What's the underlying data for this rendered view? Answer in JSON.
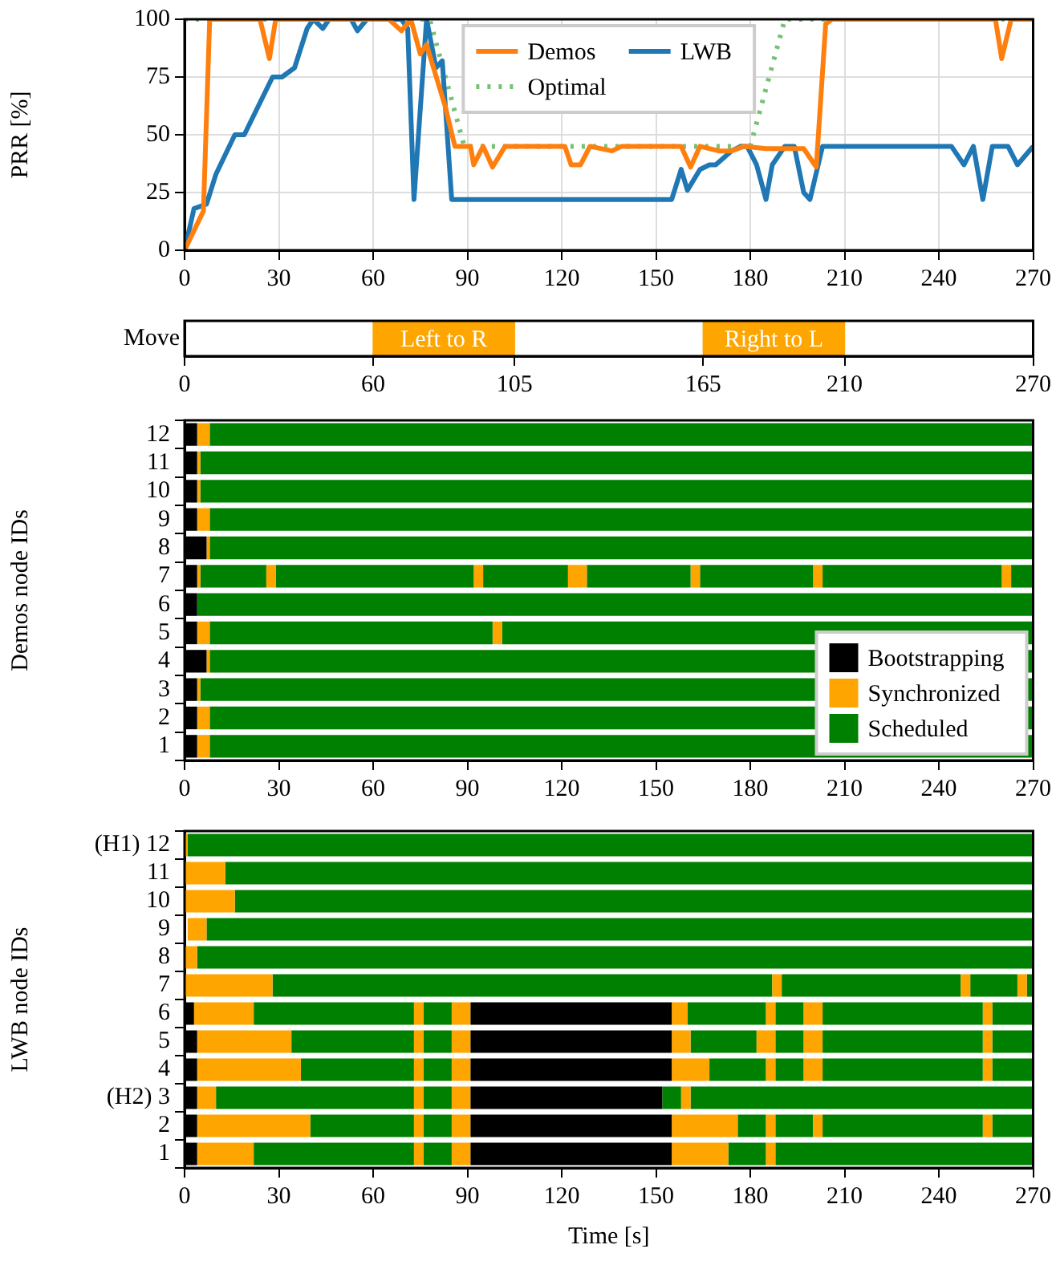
{
  "chart_data": [
    {
      "type": "line",
      "ylabel": "PRR [%]",
      "xlim": [
        0,
        270
      ],
      "xticks": [
        0,
        30,
        60,
        90,
        120,
        150,
        180,
        210,
        240,
        270
      ],
      "ylim": [
        0,
        100
      ],
      "yticks": [
        0,
        25,
        50,
        75,
        100
      ],
      "grid": true,
      "legend": "top",
      "marker": "none",
      "series": [
        {
          "name": "Demos",
          "color": "#ff7f0e",
          "line_style": "solid",
          "x": [
            0,
            6,
            8,
            24,
            27,
            29,
            65,
            69,
            72,
            75,
            77,
            81,
            83,
            86,
            91,
            92,
            95,
            98,
            102,
            121,
            123,
            126,
            129,
            136,
            139,
            158,
            161,
            164,
            170,
            174,
            178,
            185,
            190,
            197,
            201,
            204,
            206,
            258,
            260,
            263,
            270
          ],
          "values": [
            0,
            17,
            100,
            100,
            83,
            100,
            100,
            95,
            100,
            85,
            89,
            71,
            62,
            45,
            45,
            37,
            45,
            36,
            45,
            45,
            37,
            37,
            45,
            43,
            45,
            45,
            36,
            45,
            43,
            43,
            45,
            44,
            44,
            44,
            36,
            98,
            100,
            100,
            83,
            100,
            100
          ]
        },
        {
          "name": "LWB",
          "color": "#1f77b4",
          "line_style": "solid",
          "x": [
            0,
            3,
            7,
            10,
            16,
            19,
            28,
            31,
            35,
            39,
            41,
            44,
            46,
            53,
            55,
            58,
            69,
            71,
            73,
            77,
            80,
            82,
            85,
            155,
            158,
            160,
            164,
            167,
            169,
            174,
            177,
            179,
            182,
            185,
            187,
            191,
            194,
            197,
            199,
            203,
            244,
            248,
            251,
            254,
            257,
            262,
            265,
            270
          ],
          "values": [
            0,
            18,
            20,
            33,
            50,
            50,
            75,
            75,
            79,
            96,
            100,
            96,
            100,
            100,
            95,
            100,
            100,
            96,
            22,
            100,
            79,
            82,
            22,
            22,
            35,
            26,
            35,
            37,
            37,
            43,
            45,
            45,
            37,
            22,
            37,
            45,
            45,
            25,
            22,
            45,
            45,
            37,
            45,
            22,
            45,
            45,
            37,
            45
          ]
        },
        {
          "name": "Optimal",
          "color": "#77c177",
          "line_style": "dotted",
          "x": [
            0,
            78,
            89,
            180,
            191,
            270
          ],
          "values": [
            100,
            100,
            45,
            45,
            100,
            100
          ]
        }
      ]
    },
    {
      "type": "bar",
      "orientation": "horizontal",
      "categories": [
        "Move"
      ],
      "xlim": [
        0,
        270
      ],
      "xticks": [
        0,
        60,
        105,
        165,
        210,
        270
      ],
      "series": [
        {
          "color": "#ffa500",
          "base": [
            60
          ],
          "values": [
            45
          ],
          "value_labels": [
            "Left to R"
          ]
        },
        {
          "color": "#ffa500",
          "base": [
            165
          ],
          "values": [
            45
          ],
          "value_labels": [
            "Right to L"
          ]
        }
      ]
    },
    {
      "type": "bar",
      "orientation": "horizontal",
      "ylabel": "Demos node IDs",
      "categories": [
        "12",
        "11",
        "10",
        "9",
        "8",
        "7",
        "6",
        "5",
        "4",
        "3",
        "2",
        "1"
      ],
      "xlim": [
        0,
        270
      ],
      "xticks": [
        0,
        30,
        60,
        90,
        120,
        150,
        180,
        210,
        240,
        270
      ],
      "legend": "bottom right",
      "series": [
        {
          "name": "Bootstrapping",
          "color": "#000000",
          "base": [
            0,
            0,
            0,
            0,
            0,
            0,
            0,
            0,
            0,
            0,
            0,
            0
          ],
          "values": [
            4,
            4,
            4,
            4,
            7,
            4,
            4,
            4,
            7,
            4,
            4,
            4
          ]
        },
        {
          "name": "Synchronized",
          "color": "#ffa500",
          "base": [
            4,
            4,
            4,
            4,
            7,
            4,
            null,
            4,
            7,
            4,
            4,
            4
          ],
          "values": [
            4,
            1,
            1,
            4,
            1,
            1,
            null,
            4,
            1,
            1,
            4,
            4
          ]
        },
        {
          "name": "Scheduled",
          "color": "#008000",
          "base": [
            8,
            5,
            5,
            8,
            8,
            5,
            4,
            8,
            8,
            5,
            8,
            8
          ],
          "values": [
            262,
            265,
            265,
            262,
            262,
            21,
            266,
            90,
            262,
            265,
            262,
            262
          ]
        },
        {
          "color": "#ffa500",
          "base": [
            null,
            null,
            null,
            null,
            null,
            26,
            null,
            98,
            null,
            null,
            null,
            null
          ],
          "values": [
            null,
            null,
            null,
            null,
            null,
            3,
            null,
            3,
            null,
            null,
            null,
            null
          ]
        },
        {
          "color": "#008000",
          "base": [
            null,
            null,
            null,
            null,
            null,
            29,
            null,
            101,
            null,
            null,
            null,
            null
          ],
          "values": [
            null,
            null,
            null,
            null,
            null,
            63,
            null,
            169,
            null,
            null,
            null,
            null
          ]
        },
        {
          "color": "#ffa500",
          "base": [
            null,
            null,
            null,
            null,
            null,
            92,
            null,
            null,
            null,
            null,
            null,
            null
          ],
          "values": [
            null,
            null,
            null,
            null,
            null,
            3,
            null,
            null,
            null,
            null,
            null,
            null
          ]
        },
        {
          "color": "#008000",
          "base": [
            null,
            null,
            null,
            null,
            null,
            95,
            null,
            null,
            null,
            null,
            null,
            null
          ],
          "values": [
            null,
            null,
            null,
            null,
            null,
            27,
            null,
            null,
            null,
            null,
            null,
            null
          ]
        },
        {
          "color": "#ffa500",
          "base": [
            null,
            null,
            null,
            null,
            null,
            122,
            null,
            null,
            null,
            null,
            null,
            null
          ],
          "values": [
            null,
            null,
            null,
            null,
            null,
            6,
            null,
            null,
            null,
            null,
            null,
            null
          ]
        },
        {
          "color": "#008000",
          "base": [
            null,
            null,
            null,
            null,
            null,
            128,
            null,
            null,
            null,
            null,
            null,
            null
          ],
          "values": [
            null,
            null,
            null,
            null,
            null,
            33,
            null,
            null,
            null,
            null,
            null,
            null
          ]
        },
        {
          "color": "#ffa500",
          "base": [
            null,
            null,
            null,
            null,
            null,
            161,
            null,
            null,
            null,
            null,
            null,
            null
          ],
          "values": [
            null,
            null,
            null,
            null,
            null,
            3,
            null,
            null,
            null,
            null,
            null,
            null
          ]
        },
        {
          "color": "#008000",
          "base": [
            null,
            null,
            null,
            null,
            null,
            164,
            null,
            null,
            null,
            null,
            null,
            null
          ],
          "values": [
            null,
            null,
            null,
            null,
            null,
            36,
            null,
            null,
            null,
            null,
            null,
            null
          ]
        },
        {
          "color": "#ffa500",
          "base": [
            null,
            null,
            null,
            null,
            null,
            200,
            null,
            null,
            null,
            null,
            null,
            null
          ],
          "values": [
            null,
            null,
            null,
            null,
            null,
            3,
            null,
            null,
            null,
            null,
            null,
            null
          ]
        },
        {
          "color": "#008000",
          "base": [
            null,
            null,
            null,
            null,
            null,
            203,
            null,
            null,
            null,
            null,
            null,
            null
          ],
          "values": [
            null,
            null,
            null,
            null,
            null,
            57,
            null,
            null,
            null,
            null,
            null,
            null
          ]
        },
        {
          "color": "#ffa500",
          "base": [
            null,
            null,
            null,
            null,
            null,
            260,
            null,
            null,
            null,
            null,
            null,
            null
          ],
          "values": [
            null,
            null,
            null,
            null,
            null,
            3,
            null,
            null,
            null,
            null,
            null,
            null
          ]
        },
        {
          "color": "#008000",
          "base": [
            null,
            null,
            null,
            null,
            null,
            263,
            null,
            null,
            null,
            null,
            null,
            null
          ],
          "values": [
            null,
            null,
            null,
            null,
            null,
            7,
            null,
            null,
            null,
            null,
            null,
            null
          ]
        }
      ]
    },
    {
      "type": "bar",
      "orientation": "horizontal",
      "ylabel": "LWB node IDs",
      "xlabel": "Time [s]",
      "categories": [
        "(H1) 12",
        "11",
        "10",
        "9",
        "8",
        "7",
        "6",
        "5",
        "4",
        "(H2) 3",
        "2",
        "1"
      ],
      "xlim": [
        0,
        270
      ],
      "xticks": [
        0,
        30,
        60,
        90,
        120,
        150,
        180,
        210,
        240,
        270
      ],
      "series": [
        {
          "color": "#000000",
          "base": [
            null,
            null,
            null,
            null,
            null,
            null,
            0,
            0,
            0,
            0,
            0,
            0
          ],
          "values": [
            null,
            null,
            null,
            null,
            null,
            null,
            3,
            4,
            4,
            4,
            4,
            4
          ]
        },
        {
          "color": "#000000",
          "base": [
            null,
            null,
            null,
            null,
            null,
            null,
            91,
            91,
            91,
            91,
            91,
            91
          ],
          "values": [
            null,
            null,
            null,
            null,
            null,
            null,
            64,
            64,
            64,
            61,
            64,
            64
          ]
        },
        {
          "color": "#ffa500",
          "base": [
            0,
            0,
            0,
            1,
            0,
            0,
            3,
            4,
            4,
            4,
            4,
            4
          ],
          "values": [
            1,
            13,
            16,
            6,
            4,
            28,
            19,
            30,
            33,
            6,
            36,
            18
          ]
        },
        {
          "color": "#ffa500",
          "base": [
            null,
            null,
            null,
            null,
            null,
            187,
            73,
            73,
            73,
            73,
            73,
            73
          ],
          "values": [
            null,
            null,
            null,
            null,
            null,
            3,
            3,
            3,
            3,
            3,
            3,
            3
          ]
        },
        {
          "color": "#ffa500",
          "base": [
            null,
            null,
            null,
            null,
            null,
            247,
            85,
            85,
            85,
            85,
            85,
            85
          ],
          "values": [
            null,
            null,
            null,
            null,
            null,
            3,
            6,
            6,
            6,
            6,
            6,
            6
          ]
        },
        {
          "color": "#ffa500",
          "base": [
            null,
            null,
            null,
            null,
            null,
            265,
            155,
            155,
            155,
            158,
            155,
            155
          ],
          "values": [
            null,
            null,
            null,
            null,
            null,
            3,
            5,
            6,
            12,
            3,
            21,
            18
          ]
        },
        {
          "color": "#ffa500",
          "base": [
            null,
            null,
            null,
            null,
            null,
            null,
            185,
            182,
            185,
            null,
            185,
            185
          ],
          "values": [
            null,
            null,
            null,
            null,
            null,
            null,
            3,
            6,
            3,
            null,
            3,
            3
          ]
        },
        {
          "color": "#ffa500",
          "base": [
            null,
            null,
            null,
            null,
            null,
            null,
            197,
            197,
            197,
            null,
            200,
            null
          ],
          "values": [
            null,
            null,
            null,
            null,
            null,
            null,
            6,
            6,
            6,
            null,
            3,
            null
          ]
        },
        {
          "color": "#ffa500",
          "base": [
            null,
            null,
            null,
            null,
            null,
            null,
            254,
            254,
            254,
            null,
            254,
            null
          ],
          "values": [
            null,
            null,
            null,
            null,
            null,
            null,
            3,
            3,
            3,
            null,
            3,
            null
          ]
        },
        {
          "color": "#008000",
          "base": [
            1,
            13,
            16,
            7,
            4,
            28,
            22,
            34,
            37,
            10,
            40,
            22
          ],
          "values": [
            269,
            257,
            254,
            263,
            266,
            159,
            51,
            39,
            36,
            63,
            33,
            51
          ]
        },
        {
          "color": "#008000",
          "base": [
            null,
            null,
            null,
            null,
            null,
            190,
            76,
            76,
            76,
            76,
            76,
            76
          ],
          "values": [
            null,
            null,
            null,
            null,
            null,
            57,
            9,
            9,
            9,
            9,
            9,
            9
          ]
        },
        {
          "color": "#008000",
          "base": [
            null,
            null,
            null,
            null,
            null,
            250,
            160,
            161,
            167,
            152,
            176,
            173
          ],
          "values": [
            null,
            null,
            null,
            null,
            null,
            15,
            25,
            21,
            18,
            6,
            9,
            12
          ]
        },
        {
          "color": "#008000",
          "base": [
            null,
            null,
            null,
            null,
            null,
            268,
            188,
            188,
            188,
            161,
            188,
            188
          ],
          "values": [
            null,
            null,
            null,
            null,
            null,
            2,
            9,
            9,
            9,
            109,
            12,
            82
          ]
        },
        {
          "color": "#008000",
          "base": [
            null,
            null,
            null,
            null,
            null,
            null,
            203,
            203,
            203,
            null,
            203,
            null
          ],
          "values": [
            null,
            null,
            null,
            null,
            null,
            null,
            51,
            51,
            51,
            null,
            51,
            null
          ]
        },
        {
          "color": "#008000",
          "base": [
            null,
            null,
            null,
            null,
            null,
            null,
            257,
            257,
            257,
            null,
            257,
            null
          ],
          "values": [
            null,
            null,
            null,
            null,
            null,
            null,
            13,
            13,
            13,
            null,
            13,
            null
          ]
        }
      ]
    }
  ]
}
